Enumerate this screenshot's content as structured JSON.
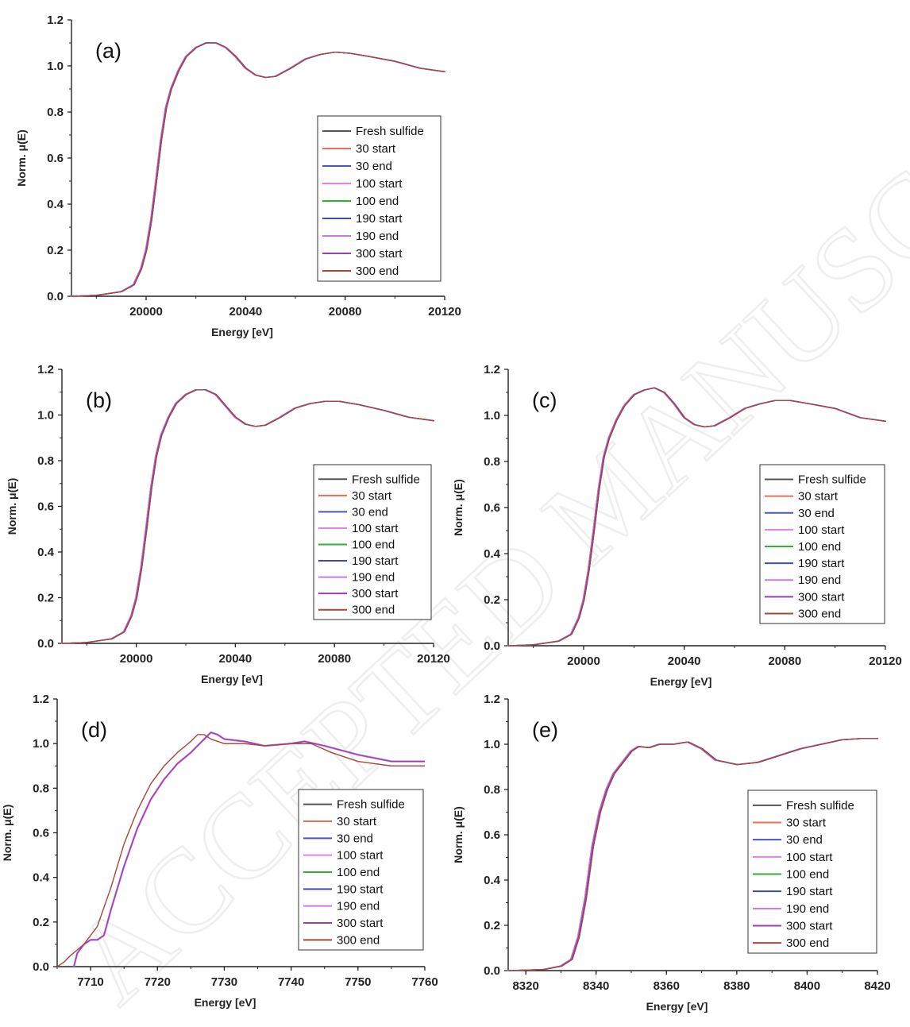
{
  "series_colors": [
    "#555555",
    "#e8705a",
    "#4a56c8",
    "#e67fe6",
    "#35b035",
    "#3e4ea6",
    "#c77ae0",
    "#9b3fb0",
    "#a14a3c"
  ],
  "watermark": "ACCEPTED MANUSCRIPT",
  "chart_data": [
    {
      "id": "a",
      "type": "line",
      "panel_label": "(a)",
      "xlabel": "Energy [eV]",
      "ylabel": "Norm. μ(E)",
      "xlim": [
        19970,
        20120
      ],
      "ylim": [
        0,
        1.2
      ],
      "xticks": [
        20000,
        20040,
        20080,
        20120
      ],
      "yticks": [
        0.0,
        0.2,
        0.4,
        0.6,
        0.8,
        1.0,
        1.2
      ],
      "legend": {
        "position": "right-middle",
        "entries": [
          "Fresh sulfide",
          "30 start",
          "30 end",
          "100 start",
          "100 end",
          "190 start",
          "190 end",
          "300 start",
          "300 end"
        ]
      },
      "curve": [
        [
          19970,
          0.0
        ],
        [
          19980,
          0.004
        ],
        [
          19990,
          0.02
        ],
        [
          19995,
          0.05
        ],
        [
          19998,
          0.12
        ],
        [
          20000,
          0.2
        ],
        [
          20002,
          0.33
        ],
        [
          20004,
          0.5
        ],
        [
          20006,
          0.68
        ],
        [
          20008,
          0.82
        ],
        [
          20010,
          0.9
        ],
        [
          20013,
          0.98
        ],
        [
          20016,
          1.04
        ],
        [
          20020,
          1.08
        ],
        [
          20024,
          1.1
        ],
        [
          20028,
          1.1
        ],
        [
          20032,
          1.08
        ],
        [
          20036,
          1.04
        ],
        [
          20040,
          0.99
        ],
        [
          20044,
          0.96
        ],
        [
          20048,
          0.95
        ],
        [
          20052,
          0.955
        ],
        [
          20058,
          0.99
        ],
        [
          20064,
          1.03
        ],
        [
          20070,
          1.05
        ],
        [
          20076,
          1.06
        ],
        [
          20082,
          1.055
        ],
        [
          20090,
          1.04
        ],
        [
          20100,
          1.02
        ],
        [
          20110,
          0.99
        ],
        [
          20120,
          0.975
        ]
      ]
    },
    {
      "id": "b",
      "type": "line",
      "panel_label": "(b)",
      "xlabel": "Energy [eV]",
      "ylabel": "Norm. μ(E)",
      "xlim": [
        19970,
        20120
      ],
      "ylim": [
        0,
        1.2
      ],
      "xticks": [
        20000,
        20040,
        20080,
        20120
      ],
      "yticks": [
        0.0,
        0.2,
        0.4,
        0.6,
        0.8,
        1.0,
        1.2
      ],
      "legend": {
        "position": "right-middle",
        "entries": [
          "Fresh sulfide",
          "30 start",
          "30 end",
          "100 start",
          "100 end",
          "190 start",
          "190 end",
          "300 start",
          "300 end"
        ]
      },
      "curve": [
        [
          19970,
          0.0
        ],
        [
          19980,
          0.004
        ],
        [
          19990,
          0.02
        ],
        [
          19995,
          0.05
        ],
        [
          19998,
          0.12
        ],
        [
          20000,
          0.2
        ],
        [
          20002,
          0.33
        ],
        [
          20004,
          0.5
        ],
        [
          20006,
          0.68
        ],
        [
          20008,
          0.82
        ],
        [
          20010,
          0.91
        ],
        [
          20013,
          0.99
        ],
        [
          20016,
          1.05
        ],
        [
          20020,
          1.09
        ],
        [
          20024,
          1.11
        ],
        [
          20028,
          1.11
        ],
        [
          20032,
          1.09
        ],
        [
          20036,
          1.04
        ],
        [
          20040,
          0.99
        ],
        [
          20044,
          0.96
        ],
        [
          20048,
          0.95
        ],
        [
          20052,
          0.955
        ],
        [
          20058,
          0.99
        ],
        [
          20064,
          1.03
        ],
        [
          20070,
          1.05
        ],
        [
          20076,
          1.06
        ],
        [
          20082,
          1.06
        ],
        [
          20090,
          1.045
        ],
        [
          20100,
          1.02
        ],
        [
          20110,
          0.99
        ],
        [
          20120,
          0.975
        ]
      ]
    },
    {
      "id": "c",
      "type": "line",
      "panel_label": "(c)",
      "xlabel": "Energy [eV]",
      "ylabel": "Norm. μ(E)",
      "xlim": [
        19970,
        20120
      ],
      "ylim": [
        0,
        1.2
      ],
      "xticks": [
        20000,
        20040,
        20080,
        20120
      ],
      "yticks": [
        0.0,
        0.2,
        0.4,
        0.6,
        0.8,
        1.0,
        1.2
      ],
      "legend": {
        "position": "right-middle",
        "entries": [
          "Fresh sulfide",
          "30 start",
          "30 end",
          "100 start",
          "100 end",
          "190 start",
          "190 end",
          "300 start",
          "300 end"
        ]
      },
      "curve": [
        [
          19970,
          0.0
        ],
        [
          19980,
          0.004
        ],
        [
          19990,
          0.02
        ],
        [
          19995,
          0.05
        ],
        [
          19998,
          0.12
        ],
        [
          20000,
          0.2
        ],
        [
          20002,
          0.33
        ],
        [
          20004,
          0.5
        ],
        [
          20006,
          0.68
        ],
        [
          20008,
          0.82
        ],
        [
          20010,
          0.9
        ],
        [
          20013,
          0.98
        ],
        [
          20016,
          1.04
        ],
        [
          20020,
          1.09
        ],
        [
          20024,
          1.11
        ],
        [
          20028,
          1.12
        ],
        [
          20032,
          1.1
        ],
        [
          20036,
          1.05
        ],
        [
          20040,
          0.99
        ],
        [
          20044,
          0.96
        ],
        [
          20048,
          0.95
        ],
        [
          20052,
          0.955
        ],
        [
          20058,
          0.99
        ],
        [
          20064,
          1.03
        ],
        [
          20070,
          1.05
        ],
        [
          20076,
          1.065
        ],
        [
          20082,
          1.065
        ],
        [
          20090,
          1.05
        ],
        [
          20100,
          1.03
        ],
        [
          20110,
          0.99
        ],
        [
          20120,
          0.975
        ]
      ]
    },
    {
      "id": "d",
      "type": "line",
      "panel_label": "(d)",
      "xlabel": "Energy [eV]",
      "ylabel": "Norm. μ(E)",
      "xlim": [
        7705,
        7760
      ],
      "ylim": [
        0,
        1.2
      ],
      "xticks": [
        7710,
        7720,
        7730,
        7740,
        7750,
        7760
      ],
      "yticks": [
        0.0,
        0.2,
        0.4,
        0.6,
        0.8,
        1.0,
        1.2
      ],
      "legend": {
        "position": "right-middle",
        "entries": [
          "Fresh sulfide",
          "30 start",
          "30 end",
          "100 start",
          "100 end",
          "190 start",
          "190 end",
          "300 start",
          "300 end"
        ]
      },
      "curve_brown": [
        [
          7705,
          0.0
        ],
        [
          7706,
          0.02
        ],
        [
          7707,
          0.05
        ],
        [
          7709,
          0.1
        ],
        [
          7711,
          0.18
        ],
        [
          7713,
          0.35
        ],
        [
          7715,
          0.55
        ],
        [
          7717,
          0.7
        ],
        [
          7719,
          0.82
        ],
        [
          7721,
          0.9
        ],
        [
          7723,
          0.96
        ],
        [
          7725,
          1.01
        ],
        [
          7726,
          1.04
        ],
        [
          7727,
          1.04
        ],
        [
          7728,
          1.02
        ],
        [
          7730,
          1.0
        ],
        [
          7733,
          1.0
        ],
        [
          7736,
          0.99
        ],
        [
          7740,
          1.0
        ],
        [
          7743,
          1.0
        ],
        [
          7746,
          0.96
        ],
        [
          7750,
          0.92
        ],
        [
          7755,
          0.9
        ],
        [
          7760,
          0.9
        ]
      ],
      "curve_purple": [
        [
          7707.5,
          0.0
        ],
        [
          7708,
          0.06
        ],
        [
          7709,
          0.1
        ],
        [
          7710,
          0.12
        ],
        [
          7711,
          0.12
        ],
        [
          7712,
          0.14
        ],
        [
          7713,
          0.25
        ],
        [
          7715,
          0.45
        ],
        [
          7717,
          0.62
        ],
        [
          7719,
          0.75
        ],
        [
          7721,
          0.84
        ],
        [
          7723,
          0.91
        ],
        [
          7725,
          0.96
        ],
        [
          7727,
          1.02
        ],
        [
          7728,
          1.05
        ],
        [
          7729,
          1.04
        ],
        [
          7730,
          1.02
        ],
        [
          7733,
          1.01
        ],
        [
          7736,
          0.99
        ],
        [
          7740,
          1.0
        ],
        [
          7742,
          1.01
        ],
        [
          7745,
          0.99
        ],
        [
          7750,
          0.95
        ],
        [
          7755,
          0.92
        ],
        [
          7760,
          0.92
        ]
      ]
    },
    {
      "id": "e",
      "type": "line",
      "panel_label": "(e)",
      "xlabel": "Energy [eV]",
      "ylabel": "Norm. μ(E)",
      "xlim": [
        8315,
        8420
      ],
      "ylim": [
        0,
        1.2
      ],
      "xticks": [
        8320,
        8340,
        8360,
        8380,
        8400,
        8420
      ],
      "yticks": [
        0.0,
        0.2,
        0.4,
        0.6,
        0.8,
        1.0,
        1.2
      ],
      "legend": {
        "position": "right-middle",
        "entries": [
          "Fresh sulfide",
          "30 start",
          "30 end",
          "100 start",
          "100 end",
          "190 start",
          "190 end",
          "300 start",
          "300 end"
        ]
      },
      "curve": [
        [
          8315,
          0.0
        ],
        [
          8325,
          0.005
        ],
        [
          8330,
          0.02
        ],
        [
          8333,
          0.05
        ],
        [
          8335,
          0.15
        ],
        [
          8337,
          0.32
        ],
        [
          8339,
          0.55
        ],
        [
          8341,
          0.7
        ],
        [
          8343,
          0.8
        ],
        [
          8345,
          0.87
        ],
        [
          8348,
          0.93
        ],
        [
          8350,
          0.97
        ],
        [
          8352,
          0.99
        ],
        [
          8355,
          0.985
        ],
        [
          8358,
          1.0
        ],
        [
          8362,
          1.0
        ],
        [
          8366,
          1.01
        ],
        [
          8370,
          0.98
        ],
        [
          8374,
          0.93
        ],
        [
          8380,
          0.91
        ],
        [
          8386,
          0.92
        ],
        [
          8392,
          0.95
        ],
        [
          8398,
          0.98
        ],
        [
          8404,
          1.0
        ],
        [
          8410,
          1.02
        ],
        [
          8415,
          1.025
        ],
        [
          8420,
          1.025
        ]
      ]
    }
  ]
}
